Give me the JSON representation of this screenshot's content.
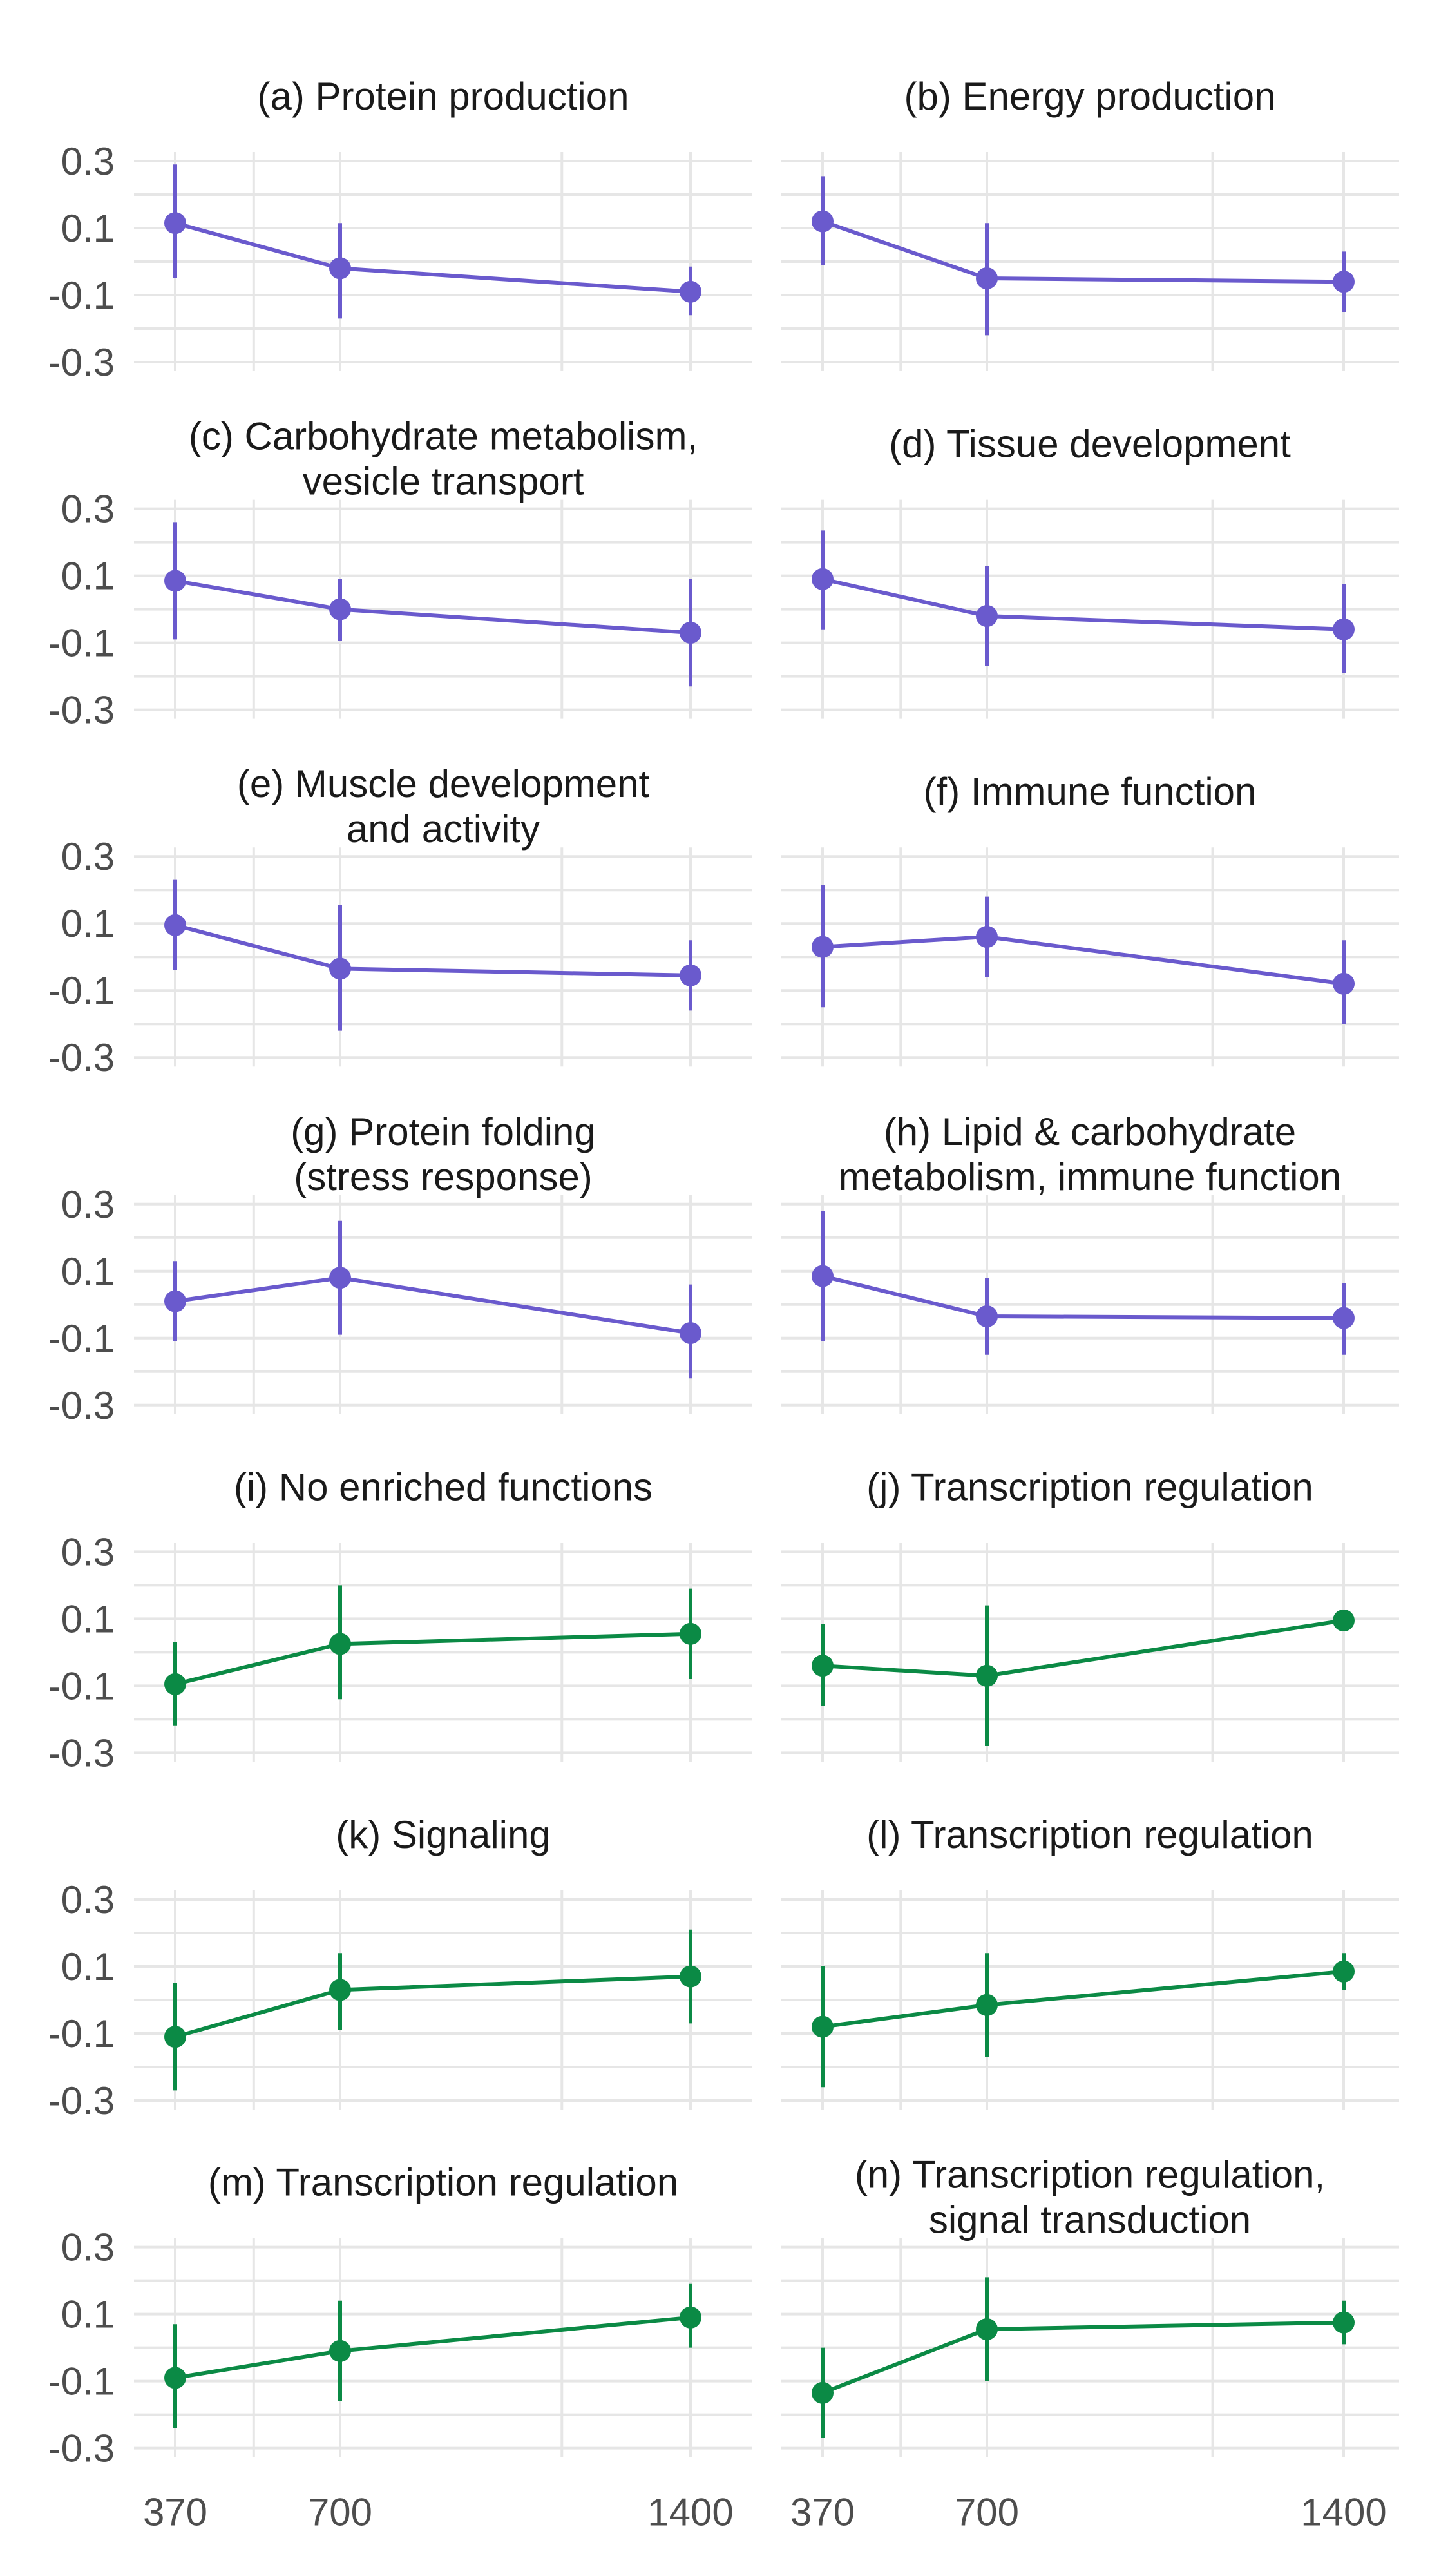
{
  "chart_data": {
    "type": "line",
    "layout": "faceted grid, 7 rows by 2 columns, error bars on every point",
    "title": "",
    "xlabel": "",
    "ylabel": "",
    "x": [
      370,
      700,
      1400
    ],
    "xlim": [
      370,
      1400
    ],
    "ylim": [
      -0.3,
      0.3
    ],
    "x_ticks": [
      "370",
      "700",
      "1400"
    ],
    "y_ticks": [
      "0.3",
      "0.1",
      "-0.1",
      "-0.3"
    ],
    "grid": true,
    "legend": "none",
    "colors": {
      "purple": "#6a5acd",
      "green": "#0b8a45",
      "grid": "#e6e6e6"
    },
    "panels": [
      {
        "title": "(a) Protein production",
        "color": "purple",
        "values": [
          0.115,
          -0.02,
          -0.09
        ],
        "lower": [
          -0.05,
          -0.17,
          -0.16
        ],
        "upper": [
          0.29,
          0.115,
          -0.015
        ]
      },
      {
        "title": "(b) Energy production",
        "color": "purple",
        "values": [
          0.12,
          -0.05,
          -0.06
        ],
        "lower": [
          -0.01,
          -0.22,
          -0.15
        ],
        "upper": [
          0.255,
          0.115,
          0.03
        ]
      },
      {
        "title": "(c) Carbohydrate metabolism,\nvesicle transport",
        "color": "purple",
        "values": [
          0.085,
          0.0,
          -0.07
        ],
        "lower": [
          -0.09,
          -0.095,
          -0.23
        ],
        "upper": [
          0.26,
          0.09,
          0.09
        ]
      },
      {
        "title": "(d) Tissue development",
        "color": "purple",
        "values": [
          0.09,
          -0.02,
          -0.06
        ],
        "lower": [
          -0.06,
          -0.17,
          -0.19
        ],
        "upper": [
          0.235,
          0.13,
          0.075
        ]
      },
      {
        "title": "(e) Muscle development\nand activity",
        "color": "purple",
        "values": [
          0.095,
          -0.035,
          -0.055
        ],
        "lower": [
          -0.04,
          -0.22,
          -0.16
        ],
        "upper": [
          0.23,
          0.155,
          0.05
        ]
      },
      {
        "title": "(f) Immune function",
        "color": "purple",
        "values": [
          0.03,
          0.06,
          -0.08
        ],
        "lower": [
          -0.15,
          -0.06,
          -0.2
        ],
        "upper": [
          0.215,
          0.18,
          0.05
        ]
      },
      {
        "title": "(g) Protein folding\n(stress response)",
        "color": "purple",
        "values": [
          0.01,
          0.08,
          -0.085
        ],
        "lower": [
          -0.11,
          -0.09,
          -0.22
        ],
        "upper": [
          0.13,
          0.25,
          0.06
        ]
      },
      {
        "title": "(h) Lipid & carbohydrate\nmetabolism, immune function",
        "color": "purple",
        "values": [
          0.085,
          -0.035,
          -0.04
        ],
        "lower": [
          -0.11,
          -0.15,
          -0.15
        ],
        "upper": [
          0.28,
          0.08,
          0.065
        ]
      },
      {
        "title": "(i) No enriched functions",
        "color": "green",
        "values": [
          -0.095,
          0.025,
          0.055
        ],
        "lower": [
          -0.22,
          -0.14,
          -0.08
        ],
        "upper": [
          0.03,
          0.2,
          0.19
        ]
      },
      {
        "title": "(j) Transcription regulation",
        "color": "green",
        "values": [
          -0.04,
          -0.07,
          0.095
        ],
        "lower": [
          -0.16,
          -0.28,
          0.07
        ],
        "upper": [
          0.085,
          0.14,
          0.12
        ]
      },
      {
        "title": "(k) Signaling",
        "color": "green",
        "values": [
          -0.11,
          0.03,
          0.07
        ],
        "lower": [
          -0.27,
          -0.09,
          -0.07
        ],
        "upper": [
          0.05,
          0.14,
          0.21
        ]
      },
      {
        "title": "(l) Transcription regulation",
        "color": "green",
        "values": [
          -0.08,
          -0.015,
          0.085
        ],
        "lower": [
          -0.26,
          -0.17,
          0.03
        ],
        "upper": [
          0.1,
          0.14,
          0.14
        ]
      },
      {
        "title": "(m) Transcription regulation",
        "color": "green",
        "values": [
          -0.09,
          -0.01,
          0.09
        ],
        "lower": [
          -0.24,
          -0.16,
          0.0
        ],
        "upper": [
          0.07,
          0.14,
          0.19
        ]
      },
      {
        "title": "(n) Transcription regulation,\nsignal transduction",
        "color": "green",
        "values": [
          -0.135,
          0.055,
          0.075
        ],
        "lower": [
          -0.27,
          -0.1,
          0.01
        ],
        "upper": [
          0.0,
          0.21,
          0.14
        ]
      }
    ]
  }
}
